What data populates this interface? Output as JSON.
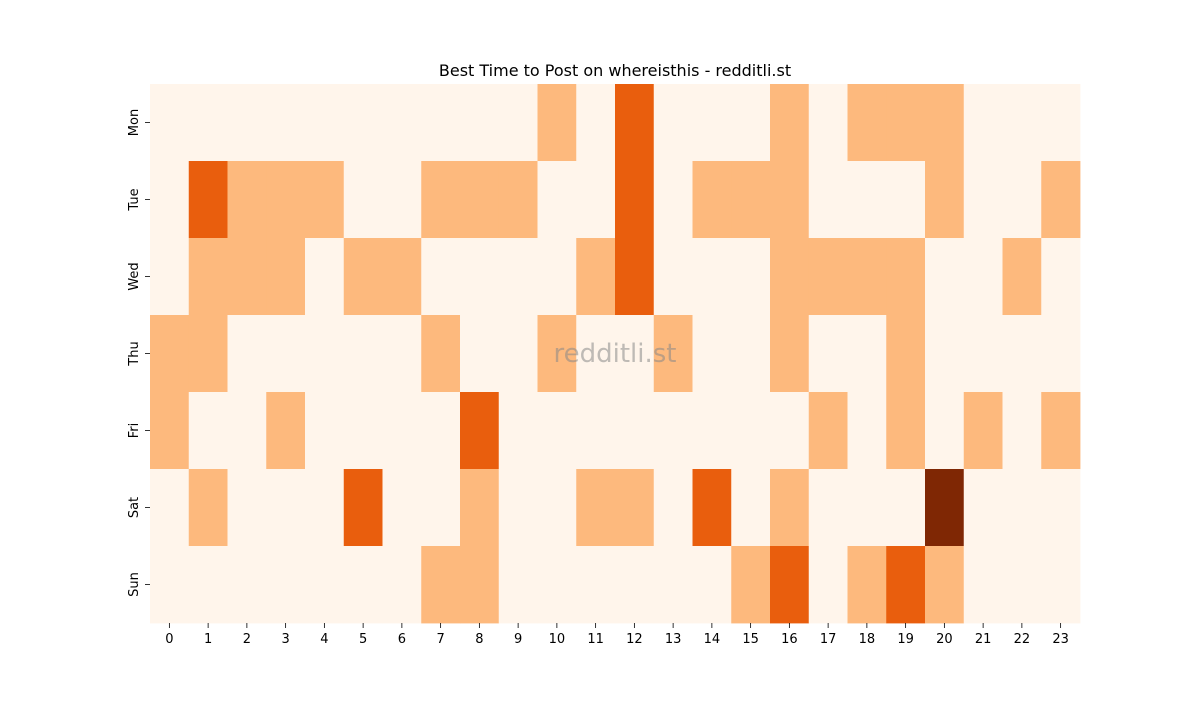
{
  "chart_data": {
    "type": "heatmap",
    "title": "Best Time to Post on whereisthis - redditli.st",
    "xlabel": "",
    "ylabel": "",
    "x_categories": [
      "0",
      "1",
      "2",
      "3",
      "4",
      "5",
      "6",
      "7",
      "8",
      "9",
      "10",
      "11",
      "12",
      "13",
      "14",
      "15",
      "16",
      "17",
      "18",
      "19",
      "20",
      "21",
      "22",
      "23"
    ],
    "y_categories": [
      "Mon",
      "Tue",
      "Wed",
      "Thu",
      "Fri",
      "Sat",
      "Sun"
    ],
    "values": [
      [
        0,
        0,
        0,
        0,
        0,
        0,
        0,
        0,
        0,
        0,
        1,
        0,
        2,
        0,
        0,
        0,
        1,
        0,
        1,
        1,
        1,
        0,
        0,
        0
      ],
      [
        0,
        2,
        1,
        1,
        1,
        0,
        0,
        1,
        1,
        1,
        0,
        0,
        2,
        0,
        1,
        1,
        1,
        0,
        0,
        0,
        1,
        0,
        0,
        1
      ],
      [
        0,
        1,
        1,
        1,
        0,
        1,
        1,
        0,
        0,
        0,
        0,
        1,
        2,
        0,
        0,
        0,
        1,
        1,
        1,
        1,
        0,
        0,
        1,
        0
      ],
      [
        1,
        1,
        0,
        0,
        0,
        0,
        0,
        1,
        0,
        0,
        1,
        0,
        0,
        1,
        0,
        0,
        1,
        0,
        0,
        1,
        0,
        0,
        0,
        0
      ],
      [
        1,
        0,
        0,
        1,
        0,
        0,
        0,
        0,
        2,
        0,
        0,
        0,
        0,
        0,
        0,
        0,
        0,
        1,
        0,
        1,
        0,
        1,
        0,
        1
      ],
      [
        0,
        1,
        0,
        0,
        0,
        2,
        0,
        0,
        1,
        0,
        0,
        1,
        1,
        0,
        2,
        0,
        1,
        0,
        0,
        0,
        3,
        0,
        0,
        0
      ],
      [
        0,
        0,
        0,
        0,
        0,
        0,
        0,
        1,
        1,
        0,
        0,
        0,
        0,
        0,
        0,
        1,
        2,
        0,
        1,
        2,
        1,
        0,
        0,
        0
      ]
    ],
    "colormap": "Oranges",
    "colors": {
      "0": "#fff5eb",
      "1": "#fdb97d",
      "2": "#e95e0d",
      "3": "#7f2704"
    },
    "colorbar": false,
    "grid": false
  },
  "watermark": "redditli.st"
}
